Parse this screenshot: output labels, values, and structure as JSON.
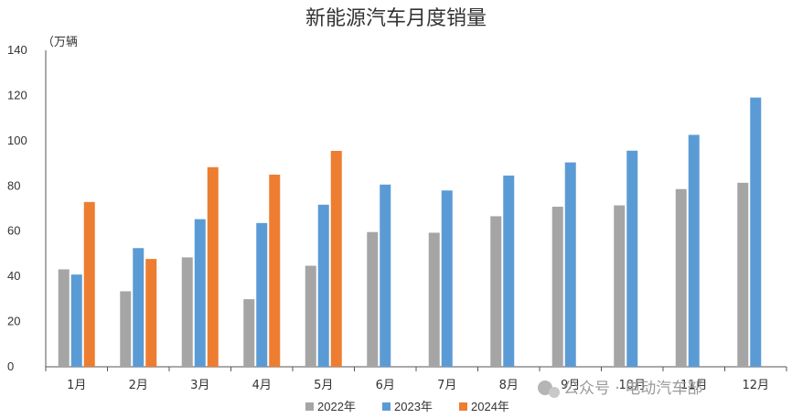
{
  "chart_data": {
    "type": "bar",
    "title": "新能源汽车月度销量",
    "unit_label": "（万辆",
    "categories": [
      "1月",
      "2月",
      "3月",
      "4月",
      "5月",
      "6月",
      "7月",
      "8月",
      "9月",
      "10月",
      "11月",
      "12月"
    ],
    "ylim": [
      0,
      140
    ],
    "yticks": [
      0,
      20,
      40,
      60,
      80,
      100,
      120,
      140
    ],
    "grid": false,
    "legend_position": "bottom",
    "series": [
      {
        "name": "2022年",
        "color": "#a5a5a5",
        "values": [
          43.1,
          33.4,
          48.4,
          29.9,
          44.7,
          59.6,
          59.3,
          66.6,
          70.8,
          71.4,
          78.6,
          81.4
        ]
      },
      {
        "name": "2023年",
        "color": "#5b9bd5",
        "values": [
          40.8,
          52.5,
          65.3,
          63.6,
          71.7,
          80.6,
          78.0,
          84.6,
          90.4,
          95.6,
          102.6,
          119.1
        ]
      },
      {
        "name": "2024年",
        "color": "#ed7d31",
        "values": [
          72.9,
          47.7,
          88.3,
          85.0,
          95.5,
          null,
          null,
          null,
          null,
          null,
          null,
          null
        ]
      }
    ]
  },
  "watermark": {
    "text": "公众号 · 电动汽车部",
    "icon": "wechat-icon"
  }
}
